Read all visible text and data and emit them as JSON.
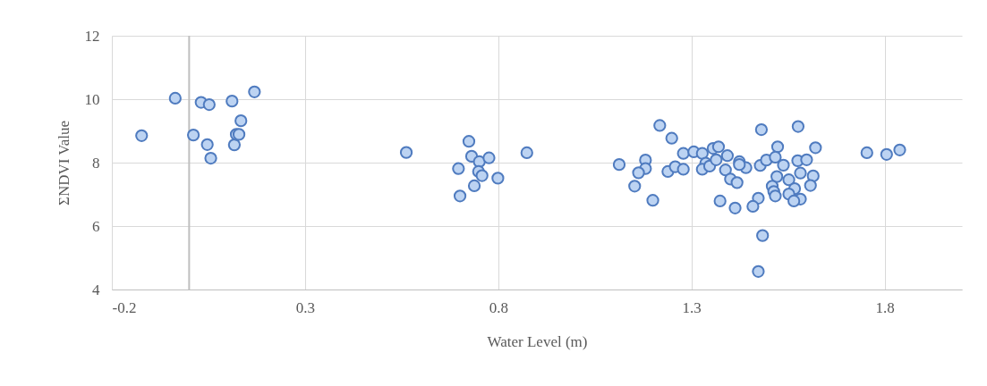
{
  "chart_data": {
    "type": "scatter",
    "xlabel": "Water Level (m)",
    "ylabel": "ΣNDVI Value",
    "xlim": [
      -0.2,
      2.0
    ],
    "xticks": [
      -0.2,
      0.3,
      0.8,
      1.3,
      1.8
    ],
    "ylim": [
      4,
      12
    ],
    "yticks": [
      4,
      6,
      8,
      10,
      12
    ],
    "grid": true,
    "marker": "circle",
    "ref_lines": [
      {
        "axis": "x",
        "value": 0,
        "color": "#bfbfbf"
      }
    ],
    "series": [
      {
        "color": "#4f7bbf",
        "x": [
          -0.123,
          -0.036,
          0.011,
          0.031,
          0.052,
          0.047,
          0.056,
          0.111,
          0.117,
          0.122,
          0.129,
          0.134,
          0.169,
          0.562,
          0.724,
          0.731,
          0.697,
          0.751,
          0.776,
          0.749,
          0.758,
          0.799,
          0.738,
          0.701,
          0.874,
          1.113,
          1.218,
          1.249,
          1.181,
          1.181,
          1.163,
          1.153,
          1.2,
          1.239,
          1.258,
          1.279,
          1.279,
          1.306,
          1.328,
          1.337,
          1.328,
          1.347,
          1.356,
          1.37,
          1.364,
          1.393,
          1.388,
          1.401,
          1.418,
          1.424,
          1.441,
          1.374,
          1.413,
          1.424,
          1.481,
          1.576,
          1.523,
          1.621,
          1.478,
          1.494,
          1.517,
          1.538,
          1.575,
          1.598,
          1.582,
          1.521,
          1.552,
          1.615,
          1.608,
          1.509,
          1.513,
          1.517,
          1.567,
          1.552,
          1.582,
          1.565,
          1.473,
          1.459,
          1.484,
          1.473,
          1.754,
          1.805,
          1.839
        ],
        "values": [
          8.85,
          10.03,
          8.87,
          9.9,
          9.83,
          8.57,
          8.14,
          9.94,
          8.56,
          8.89,
          8.89,
          9.32,
          10.23,
          8.32,
          8.67,
          8.2,
          7.81,
          8.03,
          8.15,
          7.72,
          7.59,
          7.51,
          7.27,
          6.95,
          8.31,
          7.94,
          9.17,
          8.77,
          8.08,
          7.81,
          7.68,
          7.26,
          6.81,
          7.72,
          7.87,
          7.79,
          8.29,
          8.34,
          8.29,
          7.98,
          7.79,
          7.89,
          8.45,
          8.5,
          8.09,
          8.22,
          7.77,
          7.48,
          7.37,
          8.03,
          7.84,
          6.79,
          6.57,
          7.94,
          9.04,
          9.14,
          8.5,
          8.47,
          7.91,
          8.08,
          8.17,
          7.92,
          8.06,
          8.09,
          7.67,
          7.56,
          7.46,
          7.58,
          7.28,
          7.26,
          7.09,
          6.95,
          7.18,
          7.01,
          6.85,
          6.79,
          6.88,
          6.62,
          5.7,
          4.57,
          8.31,
          8.26,
          8.4
        ]
      }
    ]
  }
}
